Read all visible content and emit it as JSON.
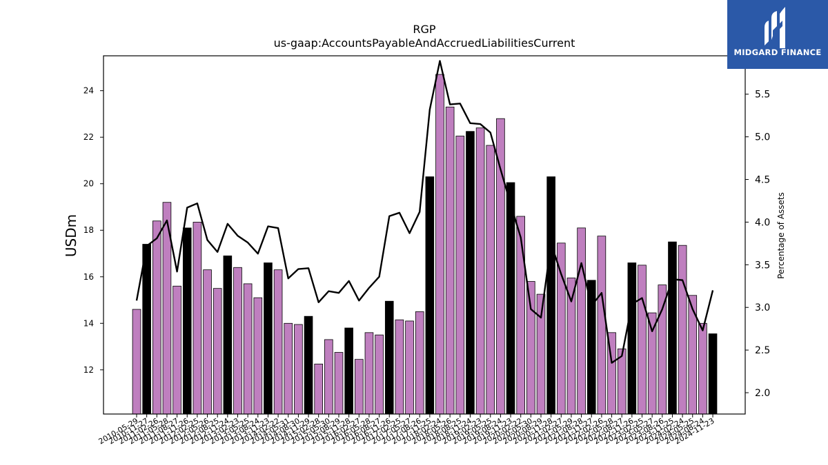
{
  "chart_data": {
    "type": "bar",
    "title": "RGP",
    "subtitle": "us-gaap:AccountsPayableAndAccruedLiabilitiesCurrent",
    "ylabel": "USDm",
    "y2label": "Percentage of Assets",
    "ylim": [
      10.1,
      25.5
    ],
    "y2lim": [
      1.75,
      5.95
    ],
    "yticks": [
      12,
      14,
      16,
      18,
      20,
      22,
      24
    ],
    "y2ticks": [
      2.0,
      2.5,
      3.0,
      3.5,
      4.0,
      4.5,
      5.0,
      5.5
    ],
    "colors": {
      "bar": "#bf7fbf",
      "bar_highlight": "#000000",
      "line": "#000000"
    },
    "categories": [
      "2010-05-29",
      "2010-11-27",
      "2011-02-26",
      "2011-05-28",
      "2011-08-27",
      "2011-11-26",
      "2012-02-25",
      "2012-05-26",
      "2012-08-25",
      "2012-11-24",
      "2013-02-23",
      "2013-05-25",
      "2013-08-24",
      "2013-11-23",
      "2014-02-22",
      "2014-05-31",
      "2014-08-30",
      "2014-11-29",
      "2015-02-28",
      "2015-05-30",
      "2015-08-29",
      "2015-11-28",
      "2016-02-27",
      "2016-05-28",
      "2016-08-27",
      "2016-11-26",
      "2017-02-25",
      "2017-05-27",
      "2017-08-26",
      "2017-11-25",
      "2018-02-24",
      "2018-05-26",
      "2018-08-25",
      "2018-11-24",
      "2019-02-23",
      "2019-05-25",
      "2019-08-24",
      "2019-11-23",
      "2020-02-22",
      "2020-05-30",
      "2020-08-29",
      "2020-11-28",
      "2021-02-27",
      "2021-05-29",
      "2021-08-28",
      "2021-11-27",
      "2022-02-26",
      "2022-05-28",
      "2022-08-27",
      "2022-11-26",
      "2023-02-25",
      "2023-05-27",
      "2023-08-26",
      "2023-11-25",
      "2024-02-24",
      "2024-05-25",
      "2024-08-24",
      "2024-11-23"
    ],
    "series": [
      {
        "name": "",
        "kind": "bar",
        "axis": "left",
        "values": [
          14.6,
          17.4,
          18.4,
          19.2,
          15.6,
          18.1,
          18.35,
          16.3,
          15.5,
          16.9,
          16.4,
          15.7,
          15.1,
          16.6,
          16.3,
          14.0,
          13.95,
          14.3,
          12.25,
          13.3,
          12.75,
          13.8,
          12.45,
          13.6,
          13.5,
          14.95,
          14.15,
          14.1,
          14.5,
          20.3,
          24.7,
          23.3,
          22.05,
          22.25,
          22.4,
          21.65,
          22.8,
          20.05,
          18.6,
          15.8,
          15.25,
          20.3,
          17.45,
          15.95,
          18.1,
          15.85,
          17.75,
          13.6,
          12.9,
          16.6,
          16.5,
          14.45,
          15.65,
          17.5,
          17.35,
          15.2,
          14.0,
          13.55
        ],
        "highlight": [
          false,
          true,
          false,
          false,
          false,
          true,
          false,
          false,
          false,
          true,
          false,
          false,
          false,
          true,
          false,
          false,
          false,
          true,
          false,
          false,
          false,
          true,
          false,
          false,
          false,
          true,
          false,
          false,
          false,
          true,
          false,
          false,
          false,
          true,
          false,
          false,
          false,
          true,
          false,
          false,
          false,
          true,
          false,
          false,
          false,
          true,
          false,
          false,
          false,
          true,
          false,
          false,
          false,
          true,
          false,
          false,
          false,
          true
        ]
      },
      {
        "name": "",
        "kind": "line",
        "axis": "right",
        "values": [
          3.08,
          3.72,
          3.81,
          4.02,
          3.42,
          4.17,
          4.22,
          3.79,
          3.65,
          3.98,
          3.84,
          3.76,
          3.63,
          3.95,
          3.93,
          3.34,
          3.45,
          3.46,
          3.06,
          3.19,
          3.17,
          3.31,
          3.08,
          3.23,
          3.36,
          4.07,
          4.11,
          3.87,
          4.12,
          5.32,
          5.89,
          5.38,
          5.39,
          5.16,
          5.15,
          5.05,
          4.62,
          4.21,
          3.82,
          2.98,
          2.88,
          3.75,
          3.39,
          3.07,
          3.52,
          3.02,
          3.17,
          2.35,
          2.43,
          3.04,
          3.11,
          2.72,
          2.98,
          3.33,
          3.32,
          2.98,
          2.73,
          3.2
        ]
      }
    ]
  },
  "logo": {
    "text": "MIDGARD FINANCE"
  }
}
